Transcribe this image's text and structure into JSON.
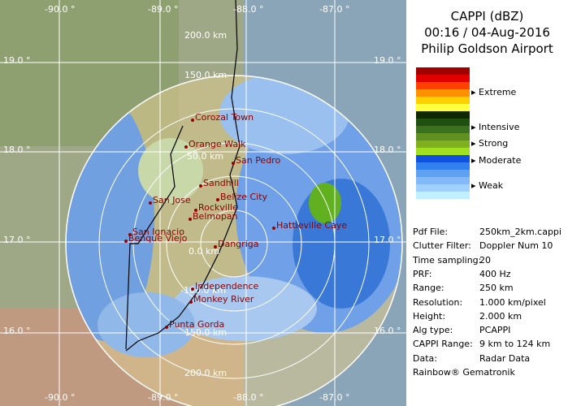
{
  "map": {
    "longitude_labels": [
      "-90.0 °",
      "-89.0 °",
      "-88.0 °",
      "-87.0 °"
    ],
    "latitude_labels": [
      "19.0 °",
      "18.0 °",
      "17.0 °",
      "16.0 °"
    ],
    "range_labels": [
      "200.0 km",
      "150.0 km",
      "50.0 km",
      "0.0 km",
      "-100.0 km",
      "150.0 km",
      "200.0 km"
    ],
    "places": [
      "Corozal Town",
      "Orange Walk",
      "San Pedro",
      "Sandhill",
      "Belize City",
      "San Jose",
      "Rockville",
      "Belmopan",
      "Hattieville Caye",
      "San Ignacio",
      "Benque Viejo",
      "Dangriga",
      "Independence",
      "Monkey River",
      "Punta Gorda"
    ]
  },
  "panel": {
    "title": "CAPPI (dBZ)",
    "time": "00:16 / 04-Aug-2016",
    "site": "Philip Goldson Airport",
    "legend_colors": [
      "#a00000",
      "#e00000",
      "#ff4000",
      "#ff9000",
      "#ffd000",
      "#ffff40",
      "#102800",
      "#205010",
      "#3a7020",
      "#609020",
      "#80b020",
      "#a0e020",
      "#1050e0",
      "#3080f0",
      "#60a0f0",
      "#80b8f8",
      "#a0d0ff",
      "#c0f0ff"
    ],
    "legend_labels": [
      "Extreme",
      "Intensive",
      "Strong",
      "Moderate",
      "Weak"
    ],
    "rows": [
      [
        "Pdf File:",
        "250km_2km.cappi"
      ],
      [
        "Clutter Filter:",
        "Doppler Num 10"
      ],
      [
        "Time sampling:",
        "20"
      ],
      [
        "PRF:",
        "400 Hz"
      ],
      [
        "Range:",
        "250 km"
      ],
      [
        "Resolution:",
        "1.000 km/pixel"
      ],
      [
        "Height:",
        "2.000 km"
      ],
      [
        "Alg type:",
        "PCAPPI"
      ],
      [
        "CAPPI Range:",
        "9 km to 124 km"
      ],
      [
        "Data:",
        "Radar Data"
      ]
    ],
    "footer": "Rainbow® Gematronik"
  }
}
